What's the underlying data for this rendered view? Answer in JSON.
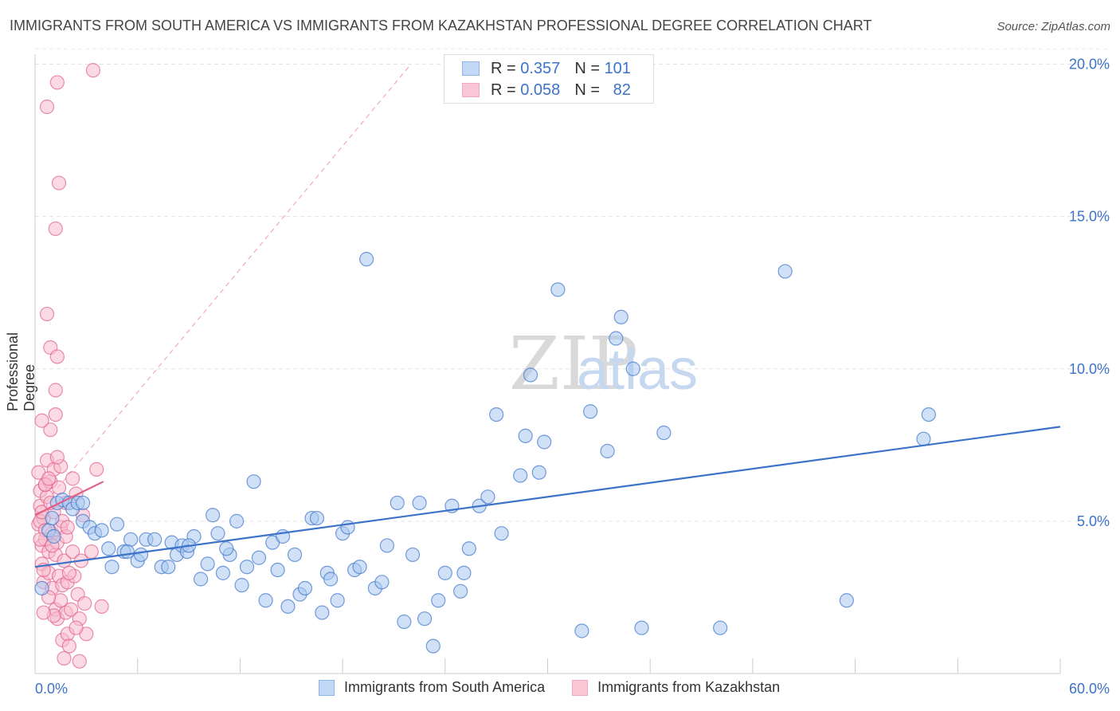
{
  "header": {
    "title": "IMMIGRANTS FROM SOUTH AMERICA VS IMMIGRANTS FROM KAZAKHSTAN PROFESSIONAL DEGREE CORRELATION CHART",
    "source": "Source: ZipAtlas.com"
  },
  "watermark": {
    "zip": "ZIP",
    "atlas": "atlas"
  },
  "stats": {
    "r_label": "R =",
    "n_label": "N =",
    "rows": [
      {
        "r": "0.357",
        "n": "101",
        "color": "#8fb4e8"
      },
      {
        "r": "0.058",
        "n": "82",
        "color": "#f4a8c0"
      }
    ]
  },
  "legend": {
    "items": [
      {
        "label": "Immigrants from South America",
        "color": "#8fb4e8"
      },
      {
        "label": "Immigrants from Kazakhstan",
        "color": "#f4a8c0"
      }
    ]
  },
  "chart_data": {
    "type": "scatter",
    "title": "IMMIGRANTS FROM SOUTH AMERICA VS IMMIGRANTS FROM KAZAKHSTAN PROFESSIONAL DEGREE CORRELATION CHART",
    "xlabel": "",
    "ylabel": "Professional Degree",
    "xlim": [
      0,
      60
    ],
    "ylim": [
      0,
      20.5
    ],
    "x_tick_labels": [
      "0.0%",
      "60.0%"
    ],
    "y_ticks": [
      5,
      10,
      15,
      20
    ],
    "y_tick_labels": [
      "5.0%",
      "10.0%",
      "15.0%",
      "20.0%"
    ],
    "grid": true,
    "series": [
      {
        "name": "Immigrants from South America",
        "color": "#3c73c9",
        "fill": "#aac8f0",
        "trend": [
          [
            0,
            3.5
          ],
          [
            60,
            8.1
          ]
        ],
        "points": [
          [
            0.4,
            2.8
          ],
          [
            0.8,
            4.7
          ],
          [
            1.0,
            5.1
          ],
          [
            1.3,
            5.6
          ],
          [
            1.6,
            5.7
          ],
          [
            2.0,
            5.6
          ],
          [
            2.2,
            5.4
          ],
          [
            2.5,
            5.6
          ],
          [
            2.8,
            5.0
          ],
          [
            3.2,
            4.8
          ],
          [
            3.5,
            4.6
          ],
          [
            3.9,
            4.7
          ],
          [
            4.3,
            4.1
          ],
          [
            4.5,
            3.5
          ],
          [
            4.8,
            4.9
          ],
          [
            5.2,
            4.0
          ],
          [
            5.6,
            4.4
          ],
          [
            6.0,
            3.7
          ],
          [
            6.2,
            3.9
          ],
          [
            6.5,
            4.4
          ],
          [
            7.0,
            4.4
          ],
          [
            7.4,
            3.5
          ],
          [
            7.8,
            3.5
          ],
          [
            8.0,
            4.3
          ],
          [
            8.3,
            3.9
          ],
          [
            8.6,
            4.2
          ],
          [
            8.9,
            4.0
          ],
          [
            9.3,
            4.5
          ],
          [
            9.7,
            3.1
          ],
          [
            10.1,
            3.6
          ],
          [
            10.4,
            5.2
          ],
          [
            10.7,
            4.6
          ],
          [
            11.0,
            3.3
          ],
          [
            11.4,
            3.9
          ],
          [
            11.8,
            5.0
          ],
          [
            12.1,
            2.9
          ],
          [
            12.4,
            3.5
          ],
          [
            12.8,
            6.3
          ],
          [
            13.1,
            3.8
          ],
          [
            13.5,
            2.4
          ],
          [
            13.9,
            4.3
          ],
          [
            14.2,
            3.4
          ],
          [
            14.5,
            4.5
          ],
          [
            14.8,
            2.2
          ],
          [
            15.2,
            3.9
          ],
          [
            15.5,
            2.6
          ],
          [
            15.8,
            2.8
          ],
          [
            16.2,
            5.1
          ],
          [
            16.5,
            5.1
          ],
          [
            16.8,
            2.0
          ],
          [
            17.1,
            3.3
          ],
          [
            17.3,
            3.1
          ],
          [
            17.7,
            2.4
          ],
          [
            18.0,
            4.6
          ],
          [
            18.3,
            4.8
          ],
          [
            18.7,
            3.4
          ],
          [
            19.0,
            3.5
          ],
          [
            19.4,
            13.6
          ],
          [
            19.9,
            2.8
          ],
          [
            20.3,
            3.0
          ],
          [
            20.6,
            4.2
          ],
          [
            21.2,
            5.6
          ],
          [
            21.6,
            1.7
          ],
          [
            22.1,
            3.9
          ],
          [
            22.5,
            5.6
          ],
          [
            22.8,
            1.8
          ],
          [
            23.3,
            0.9
          ],
          [
            23.6,
            2.4
          ],
          [
            24.0,
            3.3
          ],
          [
            24.4,
            5.5
          ],
          [
            24.9,
            2.7
          ],
          [
            25.1,
            3.3
          ],
          [
            25.4,
            4.1
          ],
          [
            26.0,
            5.5
          ],
          [
            26.5,
            5.8
          ],
          [
            27.0,
            8.5
          ],
          [
            27.3,
            4.6
          ],
          [
            28.4,
            6.5
          ],
          [
            28.7,
            7.8
          ],
          [
            29.0,
            9.8
          ],
          [
            29.5,
            6.6
          ],
          [
            29.8,
            7.6
          ],
          [
            30.6,
            12.6
          ],
          [
            32.0,
            1.4
          ],
          [
            32.5,
            8.6
          ],
          [
            33.5,
            7.3
          ],
          [
            34.0,
            11.0
          ],
          [
            34.3,
            11.7
          ],
          [
            35.0,
            10.0
          ],
          [
            35.5,
            1.5
          ],
          [
            36.8,
            7.9
          ],
          [
            40.1,
            1.5
          ],
          [
            43.9,
            13.2
          ],
          [
            47.5,
            2.4
          ],
          [
            52.0,
            7.7
          ],
          [
            52.3,
            8.5
          ],
          [
            1.1,
            4.5
          ],
          [
            2.8,
            5.6
          ],
          [
            5.4,
            4.0
          ],
          [
            9.0,
            4.2
          ],
          [
            11.2,
            4.1
          ]
        ]
      },
      {
        "name": "Immigrants from Kazakhstan",
        "color": "#e0608a",
        "fill": "#f7bccd",
        "trend": [
          [
            0,
            5.2
          ],
          [
            4.0,
            6.3
          ]
        ],
        "points": [
          [
            0.2,
            4.9
          ],
          [
            0.3,
            6.0
          ],
          [
            0.3,
            5.5
          ],
          [
            0.4,
            4.2
          ],
          [
            0.4,
            3.6
          ],
          [
            0.5,
            3.0
          ],
          [
            0.5,
            5.1
          ],
          [
            0.6,
            6.2
          ],
          [
            0.6,
            4.4
          ],
          [
            0.7,
            5.8
          ],
          [
            0.7,
            7.0
          ],
          [
            0.8,
            3.3
          ],
          [
            0.8,
            4.0
          ],
          [
            0.9,
            6.3
          ],
          [
            0.9,
            8.0
          ],
          [
            1.0,
            2.8
          ],
          [
            1.0,
            4.6
          ],
          [
            1.1,
            5.3
          ],
          [
            1.1,
            6.7
          ],
          [
            1.2,
            3.9
          ],
          [
            1.2,
            2.1
          ],
          [
            1.3,
            1.8
          ],
          [
            1.3,
            4.3
          ],
          [
            1.4,
            6.1
          ],
          [
            1.4,
            3.2
          ],
          [
            1.5,
            2.4
          ],
          [
            1.5,
            4.8
          ],
          [
            1.6,
            2.9
          ],
          [
            1.6,
            1.1
          ],
          [
            1.7,
            3.7
          ],
          [
            1.7,
            0.5
          ],
          [
            1.8,
            2.0
          ],
          [
            1.8,
            5.6
          ],
          [
            1.9,
            1.3
          ],
          [
            1.9,
            3.0
          ],
          [
            2.0,
            0.9
          ],
          [
            2.1,
            2.1
          ],
          [
            2.2,
            4.0
          ],
          [
            2.3,
            3.2
          ],
          [
            2.4,
            5.9
          ],
          [
            2.5,
            2.6
          ],
          [
            2.6,
            1.8
          ],
          [
            2.6,
            0.4
          ],
          [
            2.7,
            3.7
          ],
          [
            2.8,
            5.2
          ],
          [
            2.9,
            2.3
          ],
          [
            3.0,
            1.3
          ],
          [
            3.3,
            4.0
          ],
          [
            3.6,
            6.7
          ],
          [
            3.9,
            2.2
          ],
          [
            0.7,
            18.6
          ],
          [
            1.3,
            19.4
          ],
          [
            3.4,
            19.8
          ],
          [
            1.4,
            16.1
          ],
          [
            1.2,
            14.6
          ],
          [
            0.7,
            11.8
          ],
          [
            0.9,
            10.7
          ],
          [
            1.3,
            10.4
          ],
          [
            1.2,
            9.3
          ],
          [
            1.2,
            8.5
          ],
          [
            0.4,
            8.3
          ],
          [
            0.6,
            6.2
          ],
          [
            1.0,
            4.2
          ],
          [
            0.3,
            5.0
          ],
          [
            0.5,
            3.4
          ],
          [
            0.8,
            2.5
          ],
          [
            1.1,
            1.9
          ],
          [
            1.5,
            6.8
          ],
          [
            1.8,
            4.5
          ],
          [
            2.0,
            3.3
          ],
          [
            0.2,
            6.6
          ],
          [
            0.4,
            5.3
          ],
          [
            0.9,
            5.6
          ],
          [
            1.3,
            7.1
          ],
          [
            1.6,
            5.0
          ],
          [
            0.6,
            4.7
          ],
          [
            0.3,
            4.4
          ],
          [
            2.2,
            6.4
          ],
          [
            0.8,
            6.4
          ],
          [
            1.9,
            4.8
          ],
          [
            2.4,
            1.5
          ],
          [
            0.5,
            2.0
          ]
        ]
      }
    ]
  }
}
